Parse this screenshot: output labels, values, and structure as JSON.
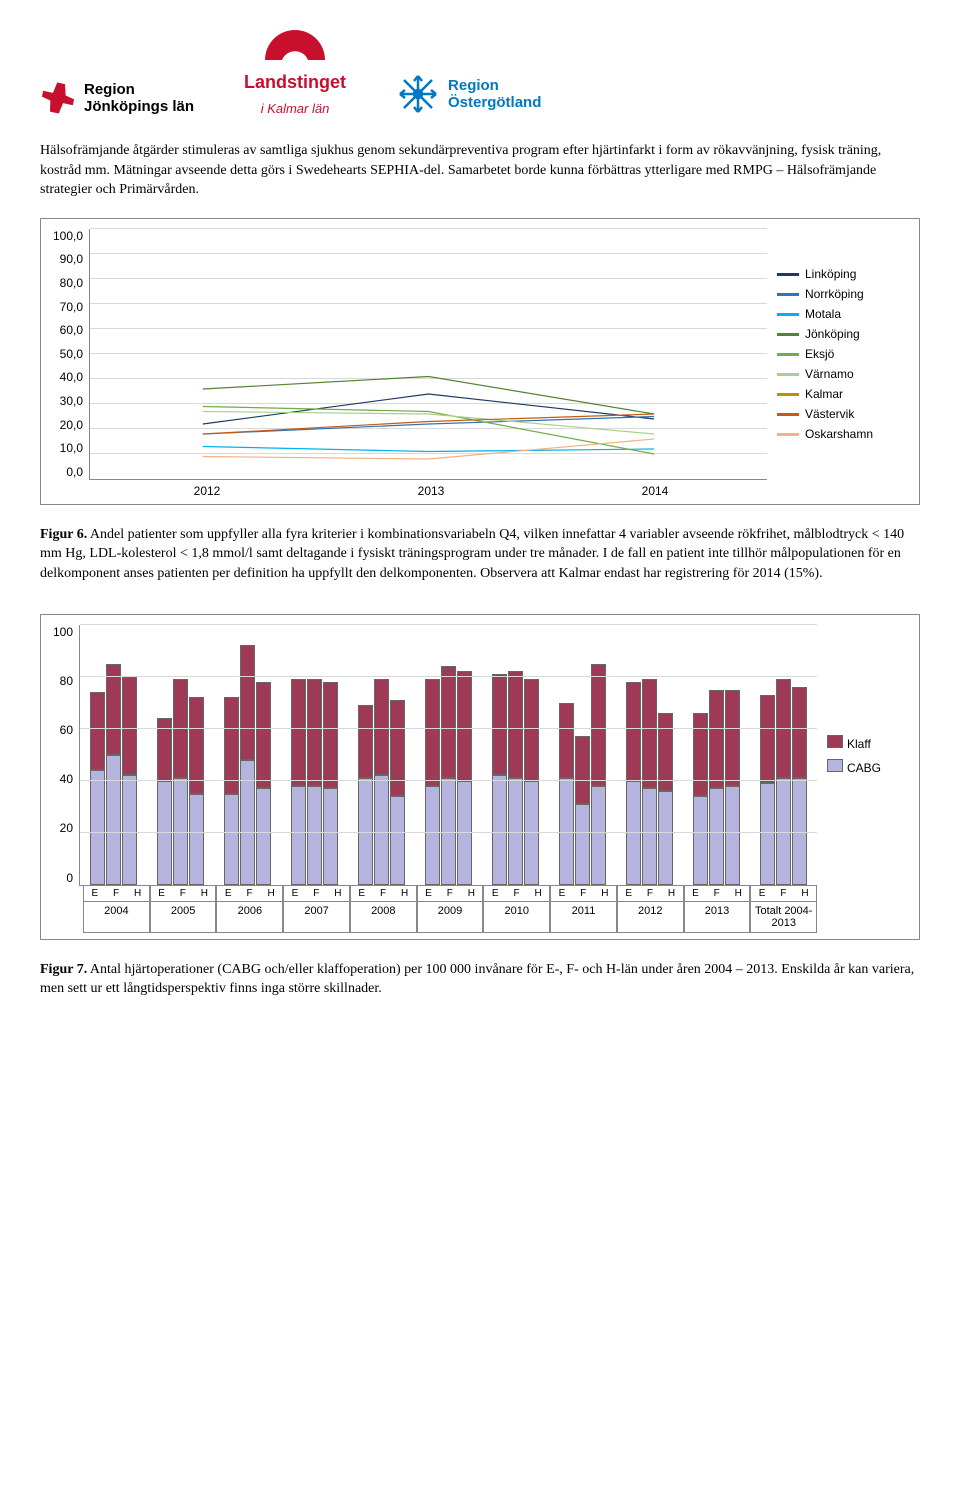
{
  "logos": {
    "region_jonkoping": "Region\nJönköpings län",
    "landstinget": "Landstinget",
    "landstinget_sub": "i Kalmar län",
    "region_ostergotland": "Region\nÖstergötland"
  },
  "para1": "Hälsofrämjande åtgärder stimuleras av samtliga sjukhus genom sekundärpreventiva program efter hjärtinfarkt i form av rökavvänjning, fysisk träning, kostråd mm. Mätningar avseende detta görs i Swedehearts SEPHIA-del. Samarbetet borde kunna förbättras ytterligare med RMPG – Hälsofrämjande strategier och Primärvården.",
  "line_chart": {
    "ylim": [
      0,
      100
    ],
    "ytick_step": 10,
    "yticks": [
      "100,0",
      "90,0",
      "80,0",
      "70,0",
      "60,0",
      "50,0",
      "40,0",
      "30,0",
      "20,0",
      "10,0",
      "0,0"
    ],
    "xticks": [
      "2012",
      "2013",
      "2014"
    ],
    "grid_color": "#d9d9d9",
    "series": [
      {
        "name": "Linköping",
        "color": "#1f3864",
        "values": [
          22,
          34,
          24
        ]
      },
      {
        "name": "Norrköping",
        "color": "#2e75b6",
        "values": [
          18,
          22,
          25
        ]
      },
      {
        "name": "Motala",
        "color": "#00b0f0",
        "values": [
          13,
          11,
          12
        ]
      },
      {
        "name": "Jönköping",
        "color": "#548235",
        "values": [
          36,
          41,
          26
        ]
      },
      {
        "name": "Eksjö",
        "color": "#70ad47",
        "values": [
          29,
          27,
          10
        ]
      },
      {
        "name": "Värnamo",
        "color": "#a9d08e",
        "values": [
          27,
          26,
          18
        ]
      },
      {
        "name": "Kalmar",
        "color": "#bf8f00",
        "values": [
          null,
          null,
          15
        ]
      },
      {
        "name": "Västervik",
        "color": "#c55a11",
        "values": [
          18,
          23,
          26
        ]
      },
      {
        "name": "Oskarshamn",
        "color": "#f4b183",
        "values": [
          9,
          8,
          16
        ]
      }
    ]
  },
  "fig6_label": "Figur 6.",
  "fig6_text": " Andel patienter som uppfyller alla fyra kriterier i kombinationsvariabeln Q4, vilken innefattar 4 variabler avseende rökfrihet, målblodtryck < 140 mm Hg, LDL-kolesterol < 1,8 mmol/l samt deltagande i fysiskt träningsprogram under tre månader. I de fall en patient inte tillhör målpopulationen för en delkomponent anses patienten per definition ha uppfyllt den delkomponenten. Observera att Kalmar endast har registrering för 2014 (15%).",
  "bar_chart": {
    "ylim": [
      0,
      100
    ],
    "ytick_step": 20,
    "yticks": [
      "100",
      "80",
      "60",
      "40",
      "20",
      "0"
    ],
    "cabg_color": "#b4b4de",
    "klaff_color": "#9e3a56",
    "legend": [
      "Klaff",
      "CABG"
    ],
    "sub_labels": [
      "E",
      "F",
      "H"
    ],
    "years": [
      "2004",
      "2005",
      "2006",
      "2007",
      "2008",
      "2009",
      "2010",
      "2011",
      "2012",
      "2013",
      "Totalt 2004-2013"
    ],
    "groups": [
      {
        "year": "2004",
        "bars": [
          {
            "cabg": 44,
            "klaff": 30
          },
          {
            "cabg": 50,
            "klaff": 35
          },
          {
            "cabg": 42,
            "klaff": 38
          }
        ]
      },
      {
        "year": "2005",
        "bars": [
          {
            "cabg": 40,
            "klaff": 24
          },
          {
            "cabg": 41,
            "klaff": 38
          },
          {
            "cabg": 35,
            "klaff": 37
          }
        ]
      },
      {
        "year": "2006",
        "bars": [
          {
            "cabg": 35,
            "klaff": 37
          },
          {
            "cabg": 48,
            "klaff": 44
          },
          {
            "cabg": 37,
            "klaff": 41
          }
        ]
      },
      {
        "year": "2007",
        "bars": [
          {
            "cabg": 38,
            "klaff": 41
          },
          {
            "cabg": 38,
            "klaff": 41
          },
          {
            "cabg": 37,
            "klaff": 41
          }
        ]
      },
      {
        "year": "2008",
        "bars": [
          {
            "cabg": 41,
            "klaff": 28
          },
          {
            "cabg": 42,
            "klaff": 37
          },
          {
            "cabg": 34,
            "klaff": 37
          }
        ]
      },
      {
        "year": "2009",
        "bars": [
          {
            "cabg": 38,
            "klaff": 41
          },
          {
            "cabg": 41,
            "klaff": 43
          },
          {
            "cabg": 40,
            "klaff": 42
          }
        ]
      },
      {
        "year": "2010",
        "bars": [
          {
            "cabg": 42,
            "klaff": 39
          },
          {
            "cabg": 41,
            "klaff": 41
          },
          {
            "cabg": 40,
            "klaff": 39
          }
        ]
      },
      {
        "year": "2011",
        "bars": [
          {
            "cabg": 41,
            "klaff": 29
          },
          {
            "cabg": 31,
            "klaff": 26
          },
          {
            "cabg": 38,
            "klaff": 47
          }
        ]
      },
      {
        "year": "2012",
        "bars": [
          {
            "cabg": 40,
            "klaff": 38
          },
          {
            "cabg": 37,
            "klaff": 42
          },
          {
            "cabg": 36,
            "klaff": 30
          }
        ]
      },
      {
        "year": "2013",
        "bars": [
          {
            "cabg": 34,
            "klaff": 32
          },
          {
            "cabg": 37,
            "klaff": 38
          },
          {
            "cabg": 38,
            "klaff": 37
          }
        ]
      },
      {
        "year": "Totalt 2004-2013",
        "bars": [
          {
            "cabg": 39,
            "klaff": 34
          },
          {
            "cabg": 41,
            "klaff": 38
          },
          {
            "cabg": 41,
            "klaff": 35
          }
        ]
      }
    ]
  },
  "fig7_label": "Figur 7.",
  "fig7_text": " Antal hjärtoperationer (CABG och/eller klaffoperation) per 100 000 invånare för E-, F- och H-län under åren 2004 – 2013. Enskilda år kan variera, men sett ur ett långtidsperspektiv finns inga större skillnader."
}
